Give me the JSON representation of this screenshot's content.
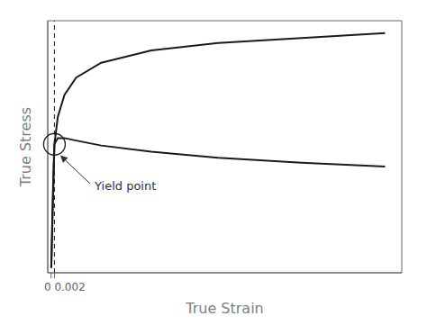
{
  "chart_data": {
    "type": "line",
    "xlabel": "True Strain",
    "ylabel": "True Stress",
    "x": [
      0.0001,
      0.0003,
      0.0006,
      0.001,
      0.0015,
      0.002,
      0.004,
      0.008,
      0.015,
      0.03,
      0.06,
      0.1,
      0.15,
      0.2
    ],
    "series": [
      {
        "color": "#1a1a1a",
        "values": [
          0.02,
          0.08,
          0.18,
          0.3,
          0.43,
          0.52,
          0.63,
          0.72,
          0.79,
          0.85,
          0.9,
          0.93,
          0.95,
          0.97
        ]
      },
      {
        "color": "#1a1a1a",
        "values": [
          0.02,
          0.07,
          0.15,
          0.26,
          0.38,
          0.52,
          0.545,
          0.545,
          0.535,
          0.515,
          0.49,
          0.465,
          0.445,
          0.43
        ]
      }
    ],
    "xlim": [
      -0.002,
      0.21
    ],
    "ylim": [
      0.0,
      1.02
    ],
    "xticks": [
      0.0,
      0.002
    ],
    "yticks": [],
    "tick_labels": "x",
    "grid": false,
    "vline": {
      "x": 0.002,
      "line_style": "dashed"
    },
    "marked_point": {
      "x": 0.002,
      "y": 0.52
    },
    "annotations": [
      {
        "text": "Yield point",
        "x": 0.025,
        "y": 0.35,
        "arrow_x": 0.0055,
        "arrow_y": 0.475
      }
    ]
  }
}
